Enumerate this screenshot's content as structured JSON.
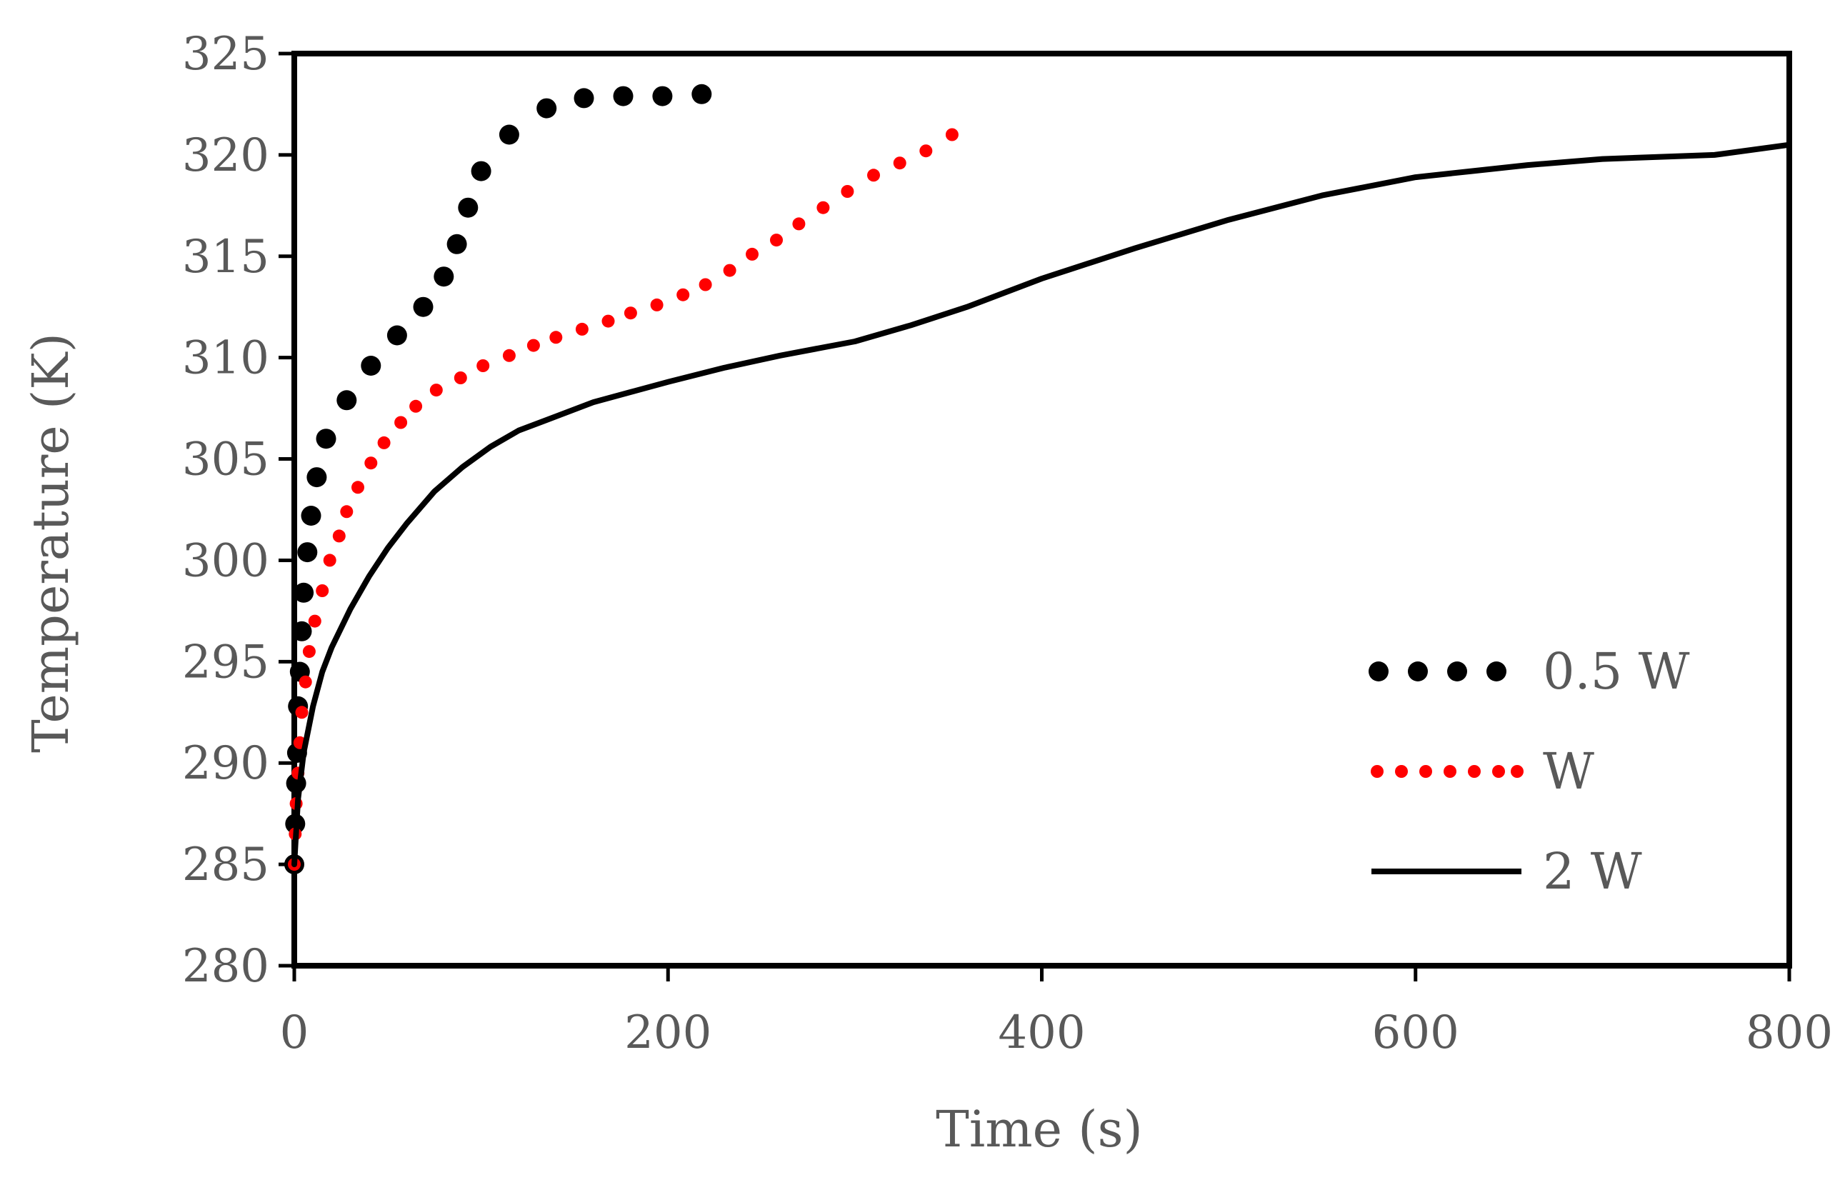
{
  "chart_data": {
    "type": "line",
    "title": "",
    "xlabel": "Time (s)",
    "ylabel": "Temperature (K)",
    "xlim": [
      0,
      800
    ],
    "ylim": [
      280,
      325
    ],
    "xticks": [
      0,
      200,
      400,
      600,
      800
    ],
    "yticks": [
      280,
      285,
      290,
      295,
      300,
      305,
      310,
      315,
      320,
      325
    ],
    "grid": false,
    "legend_position": "bottom-right",
    "series": [
      {
        "name": "0.5 W",
        "style": "dotted-large",
        "color": "#000000",
        "x": [
          0,
          0.5,
          1,
          1.5,
          2,
          3,
          4,
          5,
          7,
          9,
          12,
          17,
          28,
          41,
          55,
          69,
          80,
          87,
          93,
          100,
          115,
          135,
          155,
          176,
          197,
          218
        ],
        "y": [
          285,
          287,
          289,
          290.5,
          292.8,
          294.5,
          296.5,
          298.4,
          300.4,
          302.2,
          304.1,
          306.0,
          307.9,
          309.6,
          311.1,
          312.5,
          314.0,
          315.6,
          317.4,
          319.2,
          321.0,
          322.3,
          322.8,
          322.9,
          322.9,
          323.0
        ]
      },
      {
        "name": "W",
        "style": "dotted-small",
        "color": "#ff0000",
        "x": [
          0,
          0.5,
          1,
          2,
          3,
          4,
          6,
          8,
          11,
          15,
          19,
          24,
          28,
          34,
          41,
          48,
          57,
          65,
          76,
          89,
          101,
          115,
          128,
          140,
          154,
          168,
          180,
          194,
          208,
          220,
          233,
          245,
          258,
          270,
          283,
          296,
          310,
          324,
          338,
          352
        ],
        "y": [
          285,
          286.5,
          288,
          289.5,
          291,
          292.5,
          294,
          295.5,
          297,
          298.5,
          300,
          301.2,
          302.4,
          303.6,
          304.8,
          305.8,
          306.8,
          307.6,
          308.4,
          309.0,
          309.6,
          310.1,
          310.6,
          311.0,
          311.4,
          311.8,
          312.2,
          312.6,
          313.1,
          313.6,
          314.3,
          315.1,
          315.8,
          316.6,
          317.4,
          318.2,
          319.0,
          319.6,
          320.2,
          321.0
        ]
      },
      {
        "name": "2 W",
        "style": "solid",
        "color": "#000000",
        "x": [
          0,
          2,
          5,
          10,
          15,
          20,
          30,
          40,
          50,
          60,
          75,
          90,
          105,
          120,
          140,
          160,
          180,
          200,
          230,
          260,
          300,
          330,
          360,
          400,
          450,
          500,
          550,
          600,
          630,
          660,
          700,
          760,
          800
        ],
        "y": [
          285,
          288.2,
          290.5,
          292.8,
          294.5,
          295.7,
          297.6,
          299.2,
          300.6,
          301.8,
          303.4,
          304.6,
          305.6,
          306.4,
          307.1,
          307.8,
          308.3,
          308.8,
          309.5,
          310.1,
          310.8,
          311.6,
          312.5,
          313.9,
          315.4,
          316.8,
          318.0,
          318.9,
          319.2,
          319.5,
          319.8,
          320.0,
          320.5
        ]
      }
    ]
  }
}
